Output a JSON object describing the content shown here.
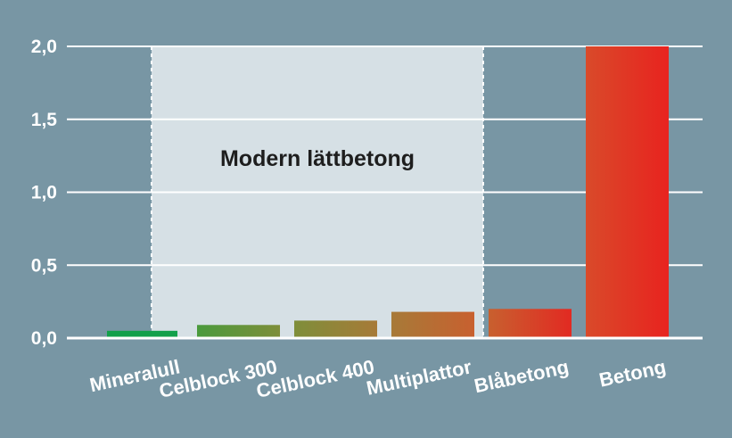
{
  "chart_data": {
    "type": "bar",
    "categories": [
      "Mineralull",
      "Celblock 300",
      "Celblock 400",
      "Multiplattor",
      "Blåbetong",
      "Betong"
    ],
    "values": [
      0.05,
      0.09,
      0.12,
      0.18,
      0.2,
      2.0
    ],
    "ylim": [
      0,
      2.0
    ],
    "yticks": [
      "0,0",
      "0,5",
      "1,0",
      "1,5",
      "2,0"
    ],
    "grid": true,
    "highlight_region": {
      "label": "Modern lättbetong",
      "categories": [
        "Celblock 300",
        "Celblock 400",
        "Multiplattor"
      ]
    },
    "colors": {
      "background": "#7896a4",
      "highlight_fill": "#d6e0e5",
      "grid": "#ffffff",
      "bars": [
        "#12a04a",
        "#4a9a3c",
        "#7e8e3a",
        "#a77a38",
        "#c8602f",
        "#e22a22"
      ]
    }
  }
}
